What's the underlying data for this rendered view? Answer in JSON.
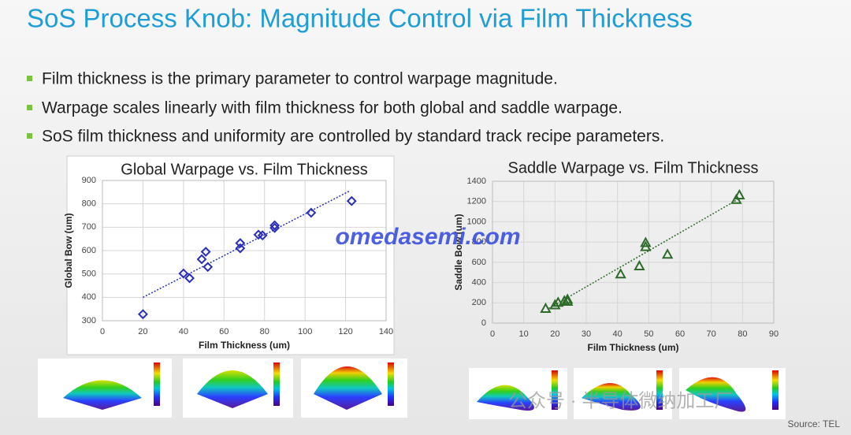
{
  "title": "SoS Process Knob: Magnitude Control via Film Thickness",
  "bullets": [
    "Film thickness is the primary parameter to control warpage magnitude.",
    "Warpage scales linearly with film thickness for both global and saddle warpage.",
    "SoS film thickness and uniformity are controlled by standard track recipe parameters."
  ],
  "watermark": "omedasemi.com",
  "wechat": "公众号 · 半导体微纳加工厂",
  "source": "Source: TEL",
  "chart_data": [
    {
      "type": "scatter",
      "title": "Global Warpage vs. Film Thickness",
      "x_label": "Film Thickness (um)",
      "y_label": "Global Bow (um)",
      "x": [
        20,
        40,
        43,
        49,
        51,
        52,
        68,
        68,
        77,
        79,
        85,
        85,
        103,
        123
      ],
      "values": [
        328,
        502,
        482,
        563,
        595,
        530,
        632,
        610,
        668,
        665,
        708,
        697,
        762,
        812
      ],
      "color": "#2a2fb8",
      "marker": "diamond",
      "trendline": {
        "x": [
          20,
          122
        ],
        "values": [
          400,
          855
        ]
      },
      "xlim": [
        0,
        140
      ],
      "xticks": [
        0,
        20,
        40,
        60,
        80,
        100,
        120,
        140
      ],
      "ylim": [
        300,
        900
      ],
      "yticks": [
        300,
        400,
        500,
        600,
        700,
        800,
        900
      ],
      "grid": true
    },
    {
      "type": "scatter",
      "title": "Saddle Warpage vs. Film Thickness",
      "x_label": "Film Thickness (um)",
      "y_label": "Saddle Bow (um)",
      "x": [
        17,
        20,
        21,
        23,
        24,
        24,
        41,
        47,
        49,
        49,
        56,
        78,
        79
      ],
      "values": [
        140,
        175,
        200,
        215,
        230,
        210,
        480,
        560,
        750,
        790,
        675,
        1215,
        1260
      ],
      "color": "#2e6b2a",
      "marker": "triangle",
      "trendline": {
        "x": [
          18,
          79
        ],
        "values": [
          145,
          1230
        ]
      },
      "xlim": [
        0,
        90
      ],
      "xticks": [
        0,
        10,
        20,
        30,
        40,
        50,
        60,
        70,
        80,
        90
      ],
      "ylim": [
        0,
        1400
      ],
      "yticks": [
        0,
        200,
        400,
        600,
        800,
        1000,
        1200,
        1400
      ],
      "grid": true
    }
  ]
}
